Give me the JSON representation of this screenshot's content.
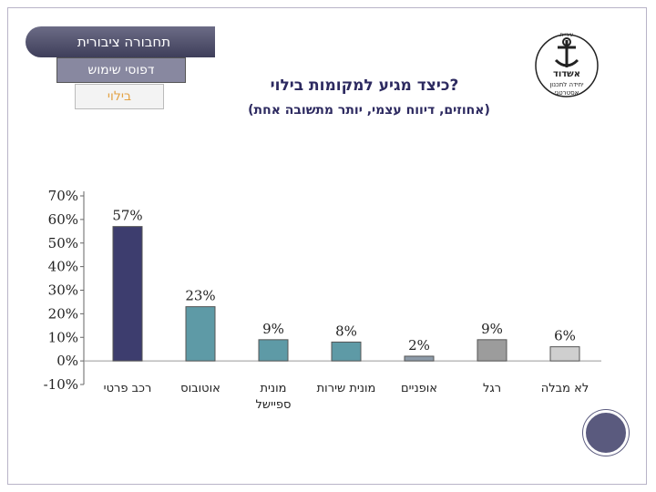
{
  "nav": {
    "tab1": "תחבורה ציבורית",
    "tab2": "דפוסי שימוש",
    "tab3": "בילוי"
  },
  "logo": {
    "line1": "עיריית",
    "line2": "אשדוד",
    "line3": "יחידה לתכנון",
    "line4": "אסטרטגי"
  },
  "chart_data": {
    "type": "bar",
    "title": "כיצד מגיע למקומות בילוי?",
    "subtitle": "(אחוזים, דיווח עצמי, יותר מתשובה אחת)",
    "categories": [
      "רכב פרטי",
      "אוטובוס",
      "מונית ספיישל",
      "מונית שירות",
      "אופניים",
      "רגל",
      "לא מבלה"
    ],
    "values": [
      57,
      23,
      9,
      8,
      2,
      9,
      6
    ],
    "data_labels": [
      "57%",
      "23%",
      "9%",
      "8%",
      "2%",
      "9%",
      "6%"
    ],
    "ylim": [
      -10,
      70
    ],
    "yticks": [
      "70%",
      "60%",
      "50%",
      "40%",
      "30%",
      "20%",
      "10%",
      "0%",
      "-10%"
    ],
    "ytick_values": [
      70,
      60,
      50,
      40,
      30,
      20,
      10,
      0,
      -10
    ],
    "colors": [
      "#3d3d6e",
      "#5e9aa6",
      "#5e9aa6",
      "#5e9aa6",
      "#8c9aa8",
      "#9c9c9c",
      "#cfcfcf"
    ],
    "xlabel": "",
    "ylabel": ""
  }
}
